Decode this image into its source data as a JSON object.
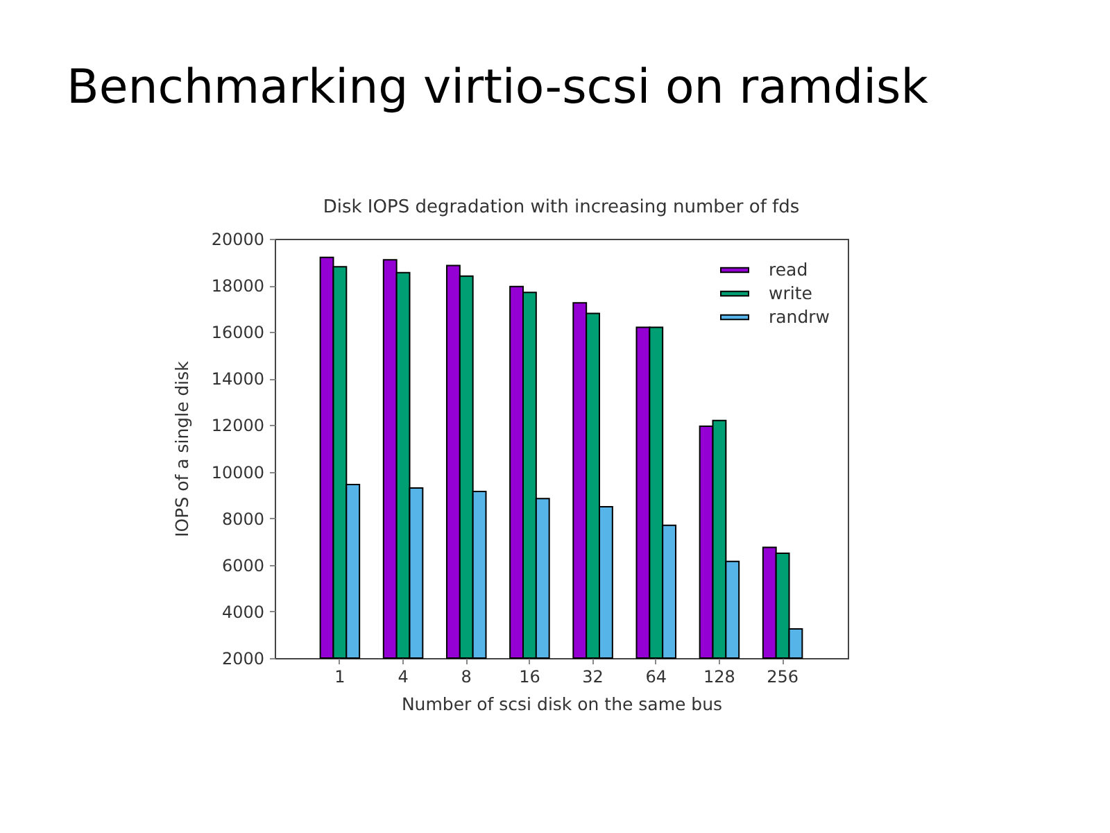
{
  "chart_data": {
    "type": "bar",
    "title": "Benchmarking virtio-scsi on ramdisk",
    "subtitle": "Disk IOPS degradation with increasing number of fds",
    "xlabel": "Number of scsi disk on the same bus",
    "ylabel": "IOPS of a single disk",
    "categories": [
      "1",
      "4",
      "8",
      "16",
      "32",
      "64",
      "128",
      "256"
    ],
    "series": [
      {
        "name": "read",
        "color": "#9400d3",
        "values": [
          19200,
          19100,
          18850,
          17950,
          17250,
          16200,
          11950,
          6750
        ]
      },
      {
        "name": "write",
        "color": "#009e73",
        "values": [
          18800,
          18550,
          18400,
          17700,
          16800,
          16200,
          12200,
          6500
        ]
      },
      {
        "name": "randrw",
        "color": "#56b4e9",
        "values": [
          9450,
          9300,
          9150,
          8850,
          8500,
          7700,
          6150,
          3250
        ]
      }
    ],
    "ylim": [
      2000,
      20000
    ],
    "yticks": [
      2000,
      4000,
      6000,
      8000,
      10000,
      12000,
      14000,
      16000,
      18000,
      20000
    ],
    "legend": "top right"
  }
}
